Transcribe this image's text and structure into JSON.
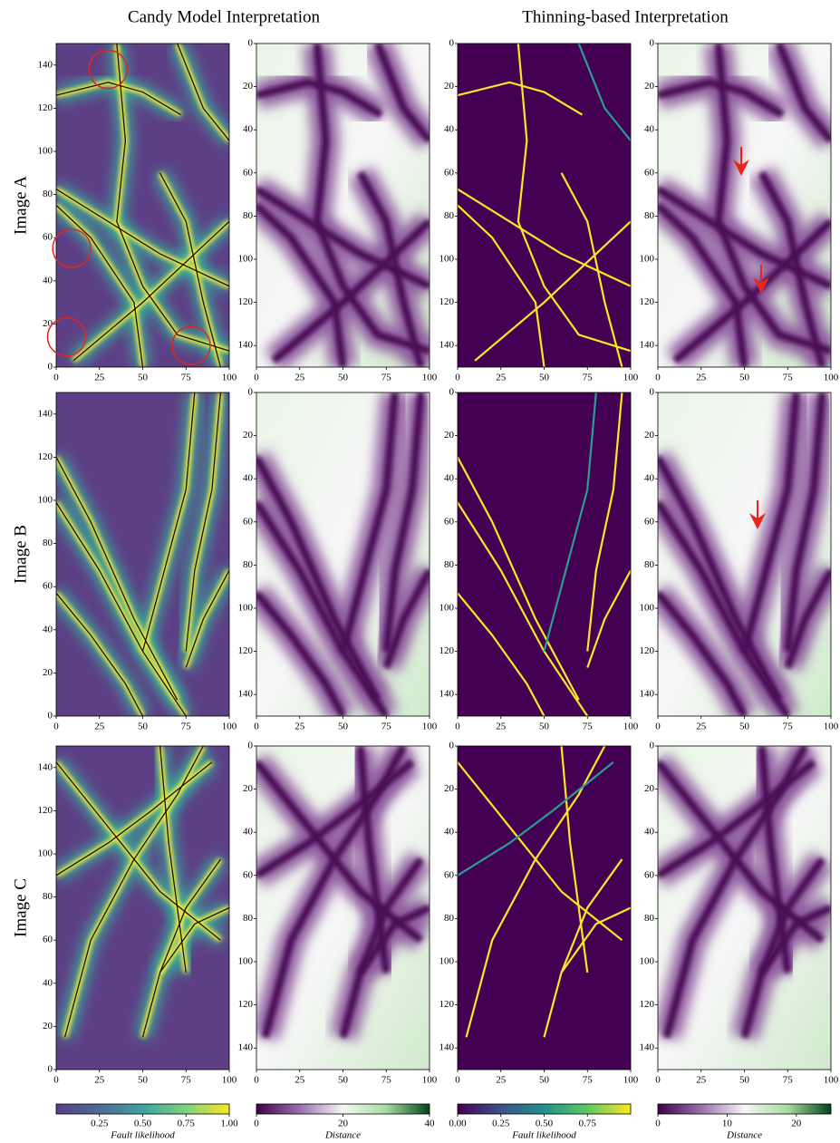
{
  "titles": [
    "Candy Model Interpretation",
    "Thinning-based Interpretation"
  ],
  "rows": [
    {
      "label": "Image A"
    },
    {
      "label": "Image B"
    },
    {
      "label": "Image C"
    }
  ],
  "columns": [
    {
      "xlim": [
        0,
        100
      ],
      "ylim": [
        0,
        150
      ],
      "y_inverted": false,
      "xticks": [
        0,
        25,
        50,
        75,
        100
      ],
      "yticks": [
        0,
        20,
        40,
        60,
        80,
        100,
        120,
        140
      ]
    },
    {
      "xlim": [
        0,
        100
      ],
      "ylim": [
        0,
        150
      ],
      "y_inverted": true,
      "xticks": [
        0,
        25,
        50,
        75,
        100
      ],
      "yticks": [
        0,
        20,
        40,
        60,
        80,
        100,
        120,
        140
      ]
    },
    {
      "xlim": [
        0,
        100
      ],
      "ylim": [
        0,
        150
      ],
      "y_inverted": true,
      "xticks": [
        0,
        25,
        50,
        75,
        100
      ],
      "yticks": [
        0,
        20,
        40,
        60,
        80,
        100,
        120,
        140
      ]
    },
    {
      "xlim": [
        0,
        100
      ],
      "ylim": [
        0,
        150
      ],
      "y_inverted": true,
      "xticks": [
        0,
        25,
        50,
        75,
        100
      ],
      "yticks": [
        0,
        20,
        40,
        60,
        80,
        100,
        120,
        140
      ]
    }
  ],
  "colorbars": [
    {
      "label": "Fault likelihood",
      "lim": [
        0,
        1
      ],
      "colormap": "viridis",
      "ticks": [
        0.25,
        {
          "value": 0.5,
          "label": "0.50"
        },
        0.75,
        {
          "value": 1,
          "label": "1.00"
        }
      ]
    },
    {
      "label": "Distance",
      "lim": [
        0,
        40
      ],
      "colormap": "PRGn",
      "ticks": [
        0,
        20,
        40
      ]
    },
    {
      "label": "Fault likelihood",
      "lim": [
        0,
        1
      ],
      "colormap": "viridis",
      "ticks": [
        {
          "value": 0,
          "label": "0.00"
        },
        0.25,
        {
          "value": 0.5,
          "label": "0.50"
        },
        0.75
      ]
    },
    {
      "label": "Distance",
      "lim": [
        0,
        25
      ],
      "colormap": "PRGn",
      "ticks": [
        0,
        10,
        20
      ]
    }
  ]
}
